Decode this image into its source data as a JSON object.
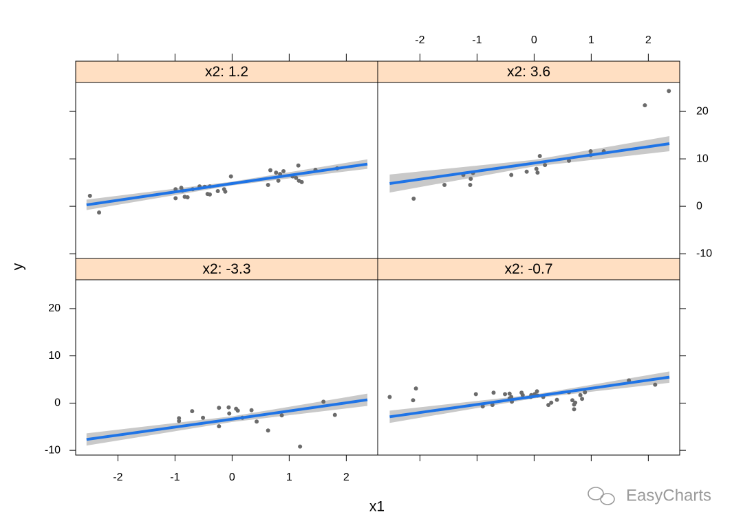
{
  "chart_data": {
    "type": "scatter",
    "xlabel": "x1",
    "ylabel": "y",
    "xlim": [
      -2.74,
      2.55
    ],
    "ylim": [
      -11,
      26.1
    ],
    "xticks": [
      -2,
      -1,
      0,
      1,
      2
    ],
    "yticks": [
      -10,
      0,
      10,
      20
    ],
    "point_color": "#6b6b6b",
    "line_color": "#1f74e6",
    "band_color": "#c9c9c9",
    "strip_color": "#ffdfc2",
    "watermark": "EasyCharts",
    "panels": [
      {
        "strip": "x2: 1.2",
        "x": [
          -2.49,
          -2.33,
          -0.99,
          -0.99,
          -0.89,
          -0.87,
          -0.83,
          -0.78,
          -0.69,
          -0.57,
          -0.48,
          -0.43,
          -0.39,
          -0.39,
          -0.25,
          -0.14,
          -0.12,
          -0.02,
          0.63,
          0.67,
          0.77,
          0.81,
          0.84,
          0.9,
          1.06,
          1.12,
          1.16,
          1.17,
          1.22,
          1.46,
          1.84
        ],
        "y": [
          2.2,
          -1.3,
          3.6,
          1.7,
          3.9,
          3.3,
          2.0,
          1.9,
          3.6,
          4.2,
          4.1,
          2.6,
          2.5,
          4.2,
          3.2,
          3.6,
          3.1,
          6.3,
          4.5,
          7.6,
          7.1,
          5.4,
          6.8,
          7.4,
          6.3,
          6.0,
          8.6,
          5.4,
          5.1,
          7.7,
          8.0
        ],
        "fit": {
          "x": [
            -2.55,
            0,
            2.37
          ],
          "y": [
            0.3,
            4.8,
            8.9
          ],
          "lower": [
            -0.8,
            4.4,
            7.9
          ],
          "upper": [
            1.4,
            5.2,
            9.9
          ]
        }
      },
      {
        "strip": "x2: 3.6",
        "x": [
          -2.11,
          -1.57,
          -1.24,
          -1.11,
          -1.12,
          -1.07,
          -0.4,
          -0.13,
          0.04,
          0.06,
          0.1,
          0.19,
          0.61,
          0.99,
          0.99,
          1.22,
          1.94,
          2.36
        ],
        "y": [
          1.6,
          4.5,
          6.6,
          5.8,
          4.5,
          7.0,
          6.6,
          7.3,
          7.9,
          7.1,
          10.6,
          8.7,
          9.6,
          11.6,
          10.8,
          11.6,
          21.3,
          24.3
        ],
        "fit": {
          "x": [
            -2.53,
            0,
            2.37
          ],
          "y": [
            4.8,
            9.1,
            13.2
          ],
          "lower": [
            2.9,
            8.4,
            11.6
          ],
          "upper": [
            6.7,
            9.8,
            14.8
          ]
        }
      },
      {
        "strip": "x2: -3.3",
        "x": [
          -0.93,
          -0.93,
          -0.7,
          -0.51,
          -0.23,
          -0.23,
          -0.06,
          -0.05,
          0.07,
          0.1,
          0.18,
          0.34,
          0.43,
          0.63,
          0.87,
          1.19,
          1.6,
          1.8
        ],
        "y": [
          -3.8,
          -3.2,
          -1.7,
          -3.1,
          -4.9,
          -1.0,
          -0.9,
          -2.2,
          -1.2,
          -1.6,
          -3.1,
          -1.5,
          -3.9,
          -5.8,
          -2.6,
          -9.2,
          0.3,
          -2.5
        ],
        "fit": {
          "x": [
            -2.55,
            0,
            2.37
          ],
          "y": [
            -7.7,
            -3.4,
            0.7
          ],
          "lower": [
            -9.0,
            -4.0,
            -0.6
          ],
          "upper": [
            -6.4,
            -2.8,
            2.0
          ]
        }
      },
      {
        "strip": "x2: -0.7",
        "x": [
          -2.53,
          -2.12,
          -2.07,
          -1.02,
          -0.9,
          -0.73,
          -0.71,
          -0.51,
          -0.43,
          -0.43,
          -0.4,
          -0.39,
          -0.22,
          -0.2,
          -0.06,
          -0.05,
          0.01,
          0.05,
          0.06,
          0.16,
          0.25,
          0.3,
          0.4,
          0.61,
          0.67,
          0.7,
          0.7,
          0.72,
          0.81,
          0.84,
          0.89,
          1.66,
          2.12
        ],
        "y": [
          1.3,
          0.6,
          3.1,
          1.9,
          -0.7,
          -0.4,
          2.2,
          1.9,
          2.0,
          1.0,
          1.3,
          0.3,
          2.2,
          1.7,
          1.3,
          1.7,
          1.9,
          2.5,
          1.6,
          1.3,
          -0.4,
          0.1,
          0.7,
          2.3,
          0.6,
          -0.3,
          -1.3,
          0.1,
          1.7,
          0.9,
          2.3,
          4.8,
          3.9
        ],
        "fit": {
          "x": [
            -2.53,
            0,
            2.37
          ],
          "y": [
            -2.9,
            1.4,
            5.5
          ],
          "lower": [
            -4.2,
            1.0,
            4.3
          ],
          "upper": [
            -1.6,
            1.8,
            6.7
          ]
        }
      }
    ]
  }
}
